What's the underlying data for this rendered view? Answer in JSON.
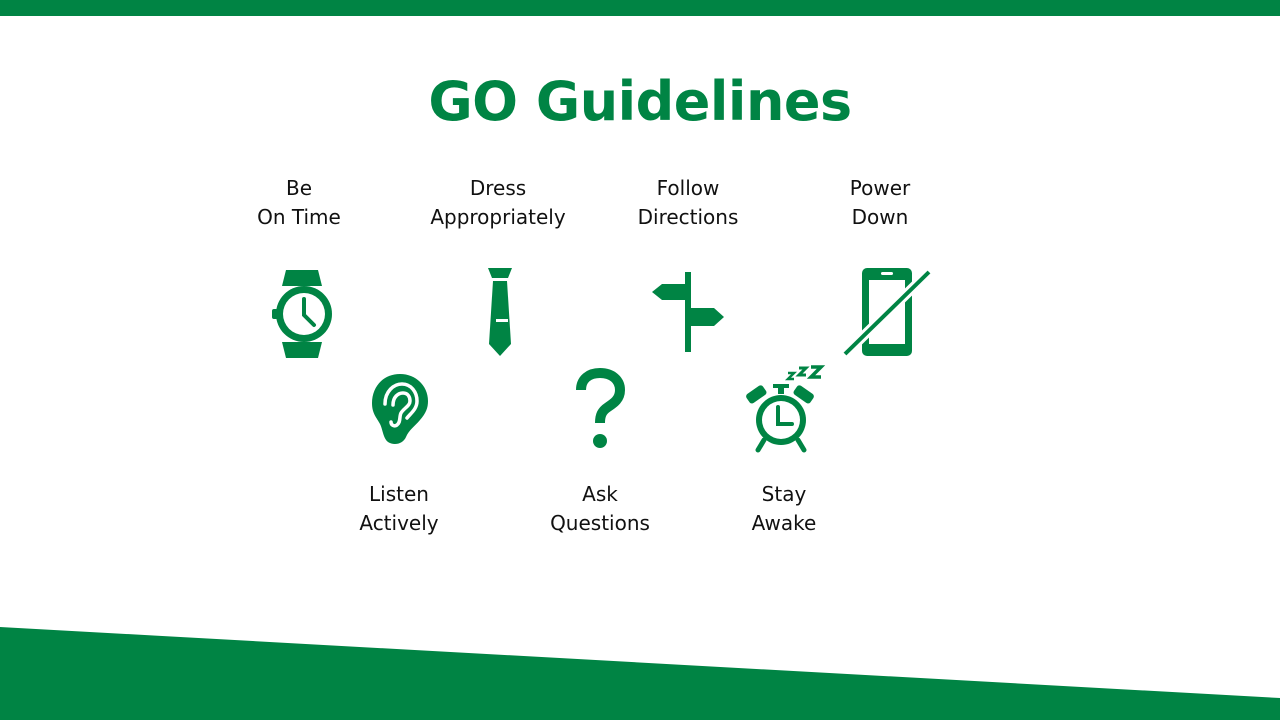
{
  "title": "GO Guidelines",
  "colors": {
    "accent": "#008444",
    "text": "#111111",
    "background": "#ffffff"
  },
  "guidelines": [
    {
      "icon": "watch-icon",
      "line1": "Be",
      "line2": "On Time"
    },
    {
      "icon": "tie-icon",
      "line1": "Dress",
      "line2": "Appropriately"
    },
    {
      "icon": "signpost-icon",
      "line1": "Follow",
      "line2": "Directions"
    },
    {
      "icon": "phone-off-icon",
      "line1": "Power",
      "line2": "Down"
    },
    {
      "icon": "ear-icon",
      "line1": "Listen",
      "line2": "Actively"
    },
    {
      "icon": "question-mark-icon",
      "line1": "Ask",
      "line2": "Questions"
    },
    {
      "icon": "alarm-clock-icon",
      "line1": "Stay",
      "line2": "Awake"
    }
  ]
}
